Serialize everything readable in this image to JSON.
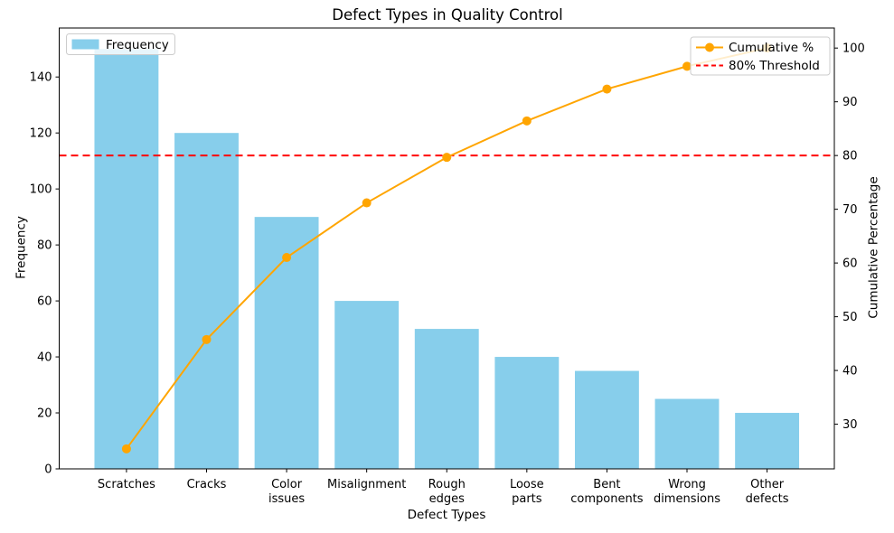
{
  "title": "Defect Types in Quality Control",
  "chart_data": {
    "type": "bar",
    "subtype": "pareto",
    "categories": [
      "Scratches",
      "Cracks",
      "Color\nissues",
      "Misalignment",
      "Rough\nedges",
      "Loose\nparts",
      "Bent\ncomponents",
      "Wrong\ndimensions",
      "Other\ndefects"
    ],
    "series": [
      {
        "name": "Frequency",
        "type": "bar",
        "axis": "left",
        "color": "#87CEEB",
        "values": [
          150,
          120,
          90,
          60,
          50,
          40,
          35,
          25,
          20
        ]
      },
      {
        "name": "Cumulative %",
        "type": "line",
        "axis": "right",
        "color": "#FFA500",
        "marker": "circle",
        "values": [
          25.42,
          45.76,
          61.02,
          71.19,
          79.66,
          86.44,
          92.37,
          96.61,
          100.0
        ]
      }
    ],
    "threshold": {
      "label": "80% Threshold",
      "value": 80,
      "axis": "right",
      "color": "#FF0000",
      "style": "dashed"
    },
    "title": "Defect Types in Quality Control",
    "xlabel": "Defect Types",
    "ylabel_left": "Frequency",
    "ylabel_right": "Cumulative Percentage",
    "yticks_left": [
      0,
      20,
      40,
      60,
      80,
      100,
      120,
      140
    ],
    "yticks_right": [
      30,
      40,
      50,
      60,
      70,
      80,
      90,
      100
    ],
    "ylim_left": [
      0,
      157.5
    ],
    "ylim_right": [
      21.69,
      103.73
    ],
    "grid": false,
    "legend_left_position": "upper left",
    "legend_right_position": "upper right",
    "axis_color": "#000000",
    "background": "#ffffff"
  }
}
